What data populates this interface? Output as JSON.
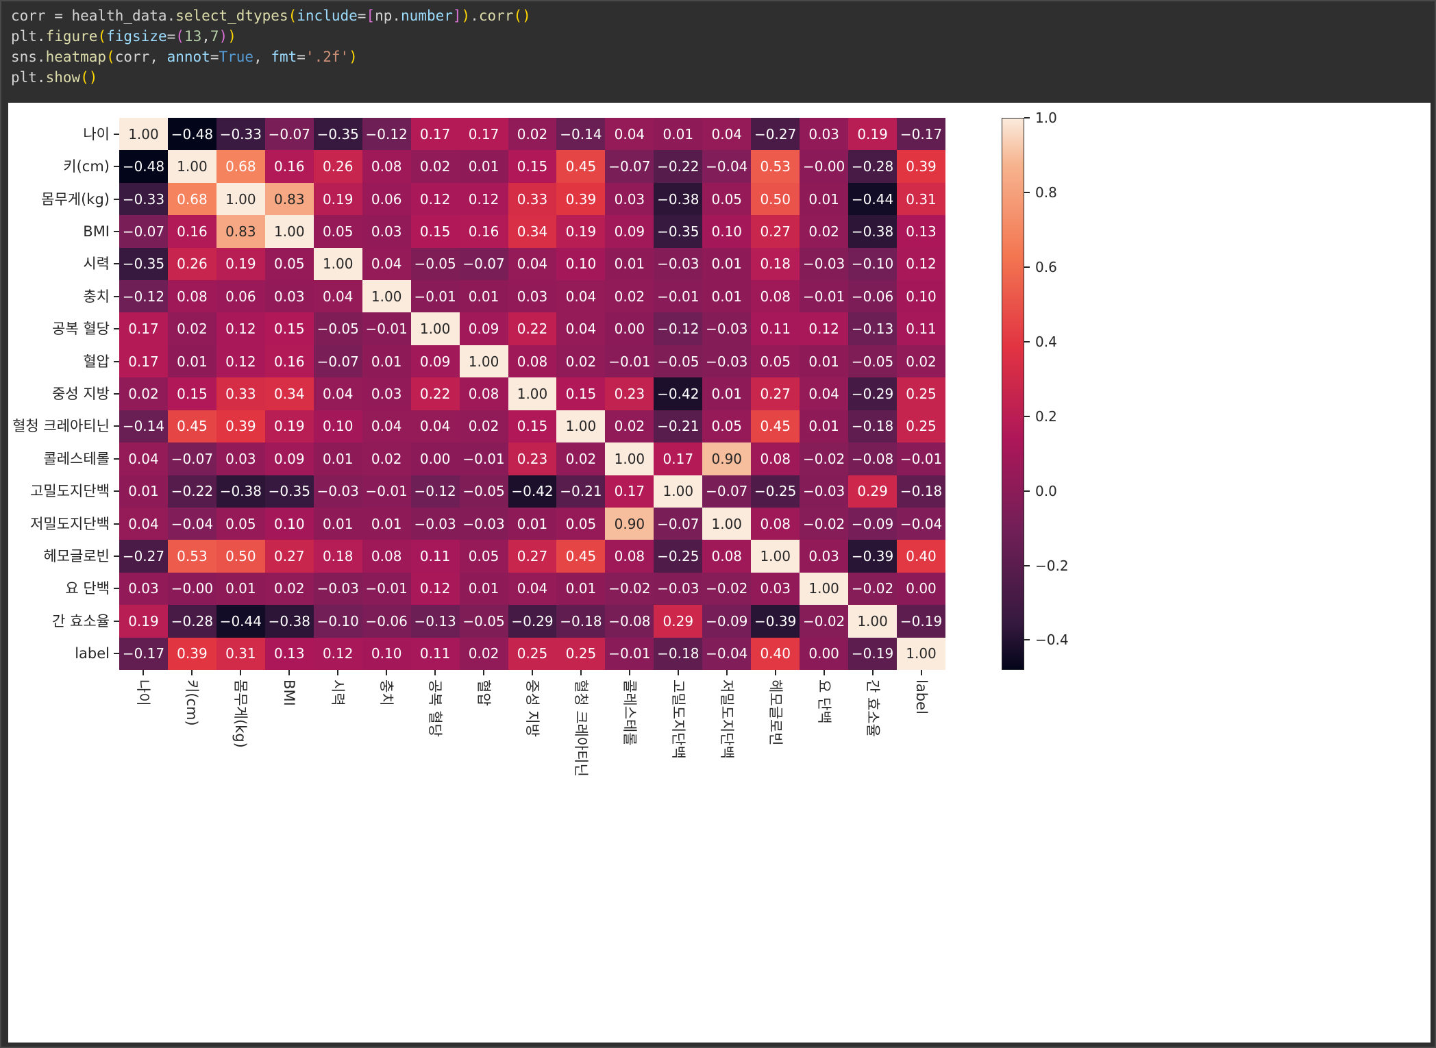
{
  "code": {
    "lines": [
      {
        "tokens": [
          {
            "t": "corr = health_data",
            "c": "v"
          },
          {
            "t": ".",
            "c": "v"
          },
          {
            "t": "select_dtypes",
            "c": "f"
          },
          {
            "t": "(",
            "c": "p1"
          },
          {
            "t": "include",
            "c": "a"
          },
          {
            "t": "=",
            "c": "v"
          },
          {
            "t": "[",
            "c": "p2"
          },
          {
            "t": "np.",
            "c": "v"
          },
          {
            "t": "number",
            "c": "a"
          },
          {
            "t": "]",
            "c": "p2"
          },
          {
            "t": ")",
            "c": "p1"
          },
          {
            "t": ".",
            "c": "v"
          },
          {
            "t": "corr",
            "c": "f"
          },
          {
            "t": "()",
            "c": "p1"
          }
        ]
      },
      {
        "tokens": [
          {
            "t": "plt.",
            "c": "v"
          },
          {
            "t": "figure",
            "c": "f"
          },
          {
            "t": "(",
            "c": "p1"
          },
          {
            "t": "figsize",
            "c": "a"
          },
          {
            "t": "=",
            "c": "v"
          },
          {
            "t": "(",
            "c": "p2"
          },
          {
            "t": "13",
            "c": "n"
          },
          {
            "t": ",",
            "c": "v"
          },
          {
            "t": "7",
            "c": "n"
          },
          {
            "t": ")",
            "c": "p2"
          },
          {
            "t": ")",
            "c": "p1"
          }
        ]
      },
      {
        "tokens": [
          {
            "t": "sns.",
            "c": "v"
          },
          {
            "t": "heatmap",
            "c": "f"
          },
          {
            "t": "(",
            "c": "p1"
          },
          {
            "t": "corr, ",
            "c": "v"
          },
          {
            "t": "annot",
            "c": "a"
          },
          {
            "t": "=",
            "c": "v"
          },
          {
            "t": "True",
            "c": "k"
          },
          {
            "t": ", ",
            "c": "v"
          },
          {
            "t": "fmt",
            "c": "a"
          },
          {
            "t": "=",
            "c": "v"
          },
          {
            "t": "'.2f'",
            "c": "s"
          },
          {
            "t": ")",
            "c": "p1"
          }
        ]
      },
      {
        "tokens": [
          {
            "t": "plt.",
            "c": "v"
          },
          {
            "t": "show",
            "c": "f"
          },
          {
            "t": "()",
            "c": "p1"
          }
        ]
      }
    ]
  },
  "chart_data": {
    "type": "heatmap",
    "title": "",
    "annot": true,
    "annot_fmt": ".2f",
    "colormap": "rocket",
    "vmin": -0.48,
    "vmax": 1.0,
    "labels": [
      "나이",
      "키(cm)",
      "몸무게(kg)",
      "BMI",
      "시력",
      "충치",
      "공복 혈당",
      "혈압",
      "중성 지방",
      "혈청 크레아티닌",
      "콜레스테롤",
      "고밀도지단백",
      "저밀도지단백",
      "헤모글로빈",
      "요 단백",
      "간 효소율",
      "label"
    ],
    "matrix": [
      [
        "1.00",
        "-0.48",
        "-0.33",
        "-0.07",
        "-0.35",
        "-0.12",
        "0.17",
        "0.17",
        "0.02",
        "-0.14",
        "0.04",
        "0.01",
        "0.04",
        "-0.27",
        "0.03",
        "0.19",
        "-0.17"
      ],
      [
        "-0.48",
        "1.00",
        "0.68",
        "0.16",
        "0.26",
        "0.08",
        "0.02",
        "0.01",
        "0.15",
        "0.45",
        "-0.07",
        "-0.22",
        "-0.04",
        "0.53",
        "-0.00",
        "-0.28",
        "0.39"
      ],
      [
        "-0.33",
        "0.68",
        "1.00",
        "0.83",
        "0.19",
        "0.06",
        "0.12",
        "0.12",
        "0.33",
        "0.39",
        "0.03",
        "-0.38",
        "0.05",
        "0.50",
        "0.01",
        "-0.44",
        "0.31"
      ],
      [
        "-0.07",
        "0.16",
        "0.83",
        "1.00",
        "0.05",
        "0.03",
        "0.15",
        "0.16",
        "0.34",
        "0.19",
        "0.09",
        "-0.35",
        "0.10",
        "0.27",
        "0.02",
        "-0.38",
        "0.13"
      ],
      [
        "-0.35",
        "0.26",
        "0.19",
        "0.05",
        "1.00",
        "0.04",
        "-0.05",
        "-0.07",
        "0.04",
        "0.10",
        "0.01",
        "-0.03",
        "0.01",
        "0.18",
        "-0.03",
        "-0.10",
        "0.12"
      ],
      [
        "-0.12",
        "0.08",
        "0.06",
        "0.03",
        "0.04",
        "1.00",
        "-0.01",
        "0.01",
        "0.03",
        "0.04",
        "0.02",
        "-0.01",
        "0.01",
        "0.08",
        "-0.01",
        "-0.06",
        "0.10"
      ],
      [
        "0.17",
        "0.02",
        "0.12",
        "0.15",
        "-0.05",
        "-0.01",
        "1.00",
        "0.09",
        "0.22",
        "0.04",
        "0.00",
        "-0.12",
        "-0.03",
        "0.11",
        "0.12",
        "-0.13",
        "0.11"
      ],
      [
        "0.17",
        "0.01",
        "0.12",
        "0.16",
        "-0.07",
        "0.01",
        "0.09",
        "1.00",
        "0.08",
        "0.02",
        "-0.01",
        "-0.05",
        "-0.03",
        "0.05",
        "0.01",
        "-0.05",
        "0.02"
      ],
      [
        "0.02",
        "0.15",
        "0.33",
        "0.34",
        "0.04",
        "0.03",
        "0.22",
        "0.08",
        "1.00",
        "0.15",
        "0.23",
        "-0.42",
        "0.01",
        "0.27",
        "0.04",
        "-0.29",
        "0.25"
      ],
      [
        "-0.14",
        "0.45",
        "0.39",
        "0.19",
        "0.10",
        "0.04",
        "0.04",
        "0.02",
        "0.15",
        "1.00",
        "0.02",
        "-0.21",
        "0.05",
        "0.45",
        "0.01",
        "-0.18",
        "0.25"
      ],
      [
        "0.04",
        "-0.07",
        "0.03",
        "0.09",
        "0.01",
        "0.02",
        "0.00",
        "-0.01",
        "0.23",
        "0.02",
        "1.00",
        "0.17",
        "0.90",
        "0.08",
        "-0.02",
        "-0.08",
        "-0.01"
      ],
      [
        "0.01",
        "-0.22",
        "-0.38",
        "-0.35",
        "-0.03",
        "-0.01",
        "-0.12",
        "-0.05",
        "-0.42",
        "-0.21",
        "0.17",
        "1.00",
        "-0.07",
        "-0.25",
        "-0.03",
        "0.29",
        "-0.18"
      ],
      [
        "0.04",
        "-0.04",
        "0.05",
        "0.10",
        "0.01",
        "0.01",
        "-0.03",
        "-0.03",
        "0.01",
        "0.05",
        "0.90",
        "-0.07",
        "1.00",
        "0.08",
        "-0.02",
        "-0.09",
        "-0.04"
      ],
      [
        "-0.27",
        "0.53",
        "0.50",
        "0.27",
        "0.18",
        "0.08",
        "0.11",
        "0.05",
        "0.27",
        "0.45",
        "0.08",
        "-0.25",
        "0.08",
        "1.00",
        "0.03",
        "-0.39",
        "0.40"
      ],
      [
        "0.03",
        "-0.00",
        "0.01",
        "0.02",
        "-0.03",
        "-0.01",
        "0.12",
        "0.01",
        "0.04",
        "0.01",
        "-0.02",
        "-0.03",
        "-0.02",
        "0.03",
        "1.00",
        "-0.02",
        "0.00"
      ],
      [
        "0.19",
        "-0.28",
        "-0.44",
        "-0.38",
        "-0.10",
        "-0.06",
        "-0.13",
        "-0.05",
        "-0.29",
        "-0.18",
        "-0.08",
        "0.29",
        "-0.09",
        "-0.39",
        "-0.02",
        "1.00",
        "-0.19"
      ],
      [
        "-0.17",
        "0.39",
        "0.31",
        "0.13",
        "0.12",
        "0.10",
        "0.11",
        "0.02",
        "0.25",
        "0.25",
        "-0.01",
        "-0.18",
        "-0.04",
        "0.40",
        "0.00",
        "-0.19",
        "1.00"
      ]
    ],
    "colorbar": {
      "position": "right",
      "ticks": [
        {
          "value": 1.0,
          "label": "1.0"
        },
        {
          "value": 0.8,
          "label": "0.8"
        },
        {
          "value": 0.6,
          "label": "0.6"
        },
        {
          "value": 0.4,
          "label": "0.4"
        },
        {
          "value": 0.2,
          "label": "0.2"
        },
        {
          "value": 0.0,
          "label": "0.0"
        },
        {
          "value": -0.2,
          "label": "-0.2"
        },
        {
          "value": -0.4,
          "label": "-0.4"
        }
      ]
    },
    "colormap_stops": [
      [
        0.0,
        "#03051A"
      ],
      [
        0.083,
        "#35193E"
      ],
      [
        0.25,
        "#701F57"
      ],
      [
        0.417,
        "#AD1759"
      ],
      [
        0.583,
        "#E13342"
      ],
      [
        0.75,
        "#F37651"
      ],
      [
        0.917,
        "#F6B48F"
      ],
      [
        1.0,
        "#FAEBDD"
      ]
    ]
  },
  "colors": {
    "page_background": "#2F2F2F",
    "figure_background": "#FFFFFF",
    "tick_text": "#262626",
    "annot_dark": "#262626",
    "annot_light": "#FFFFFF"
  }
}
